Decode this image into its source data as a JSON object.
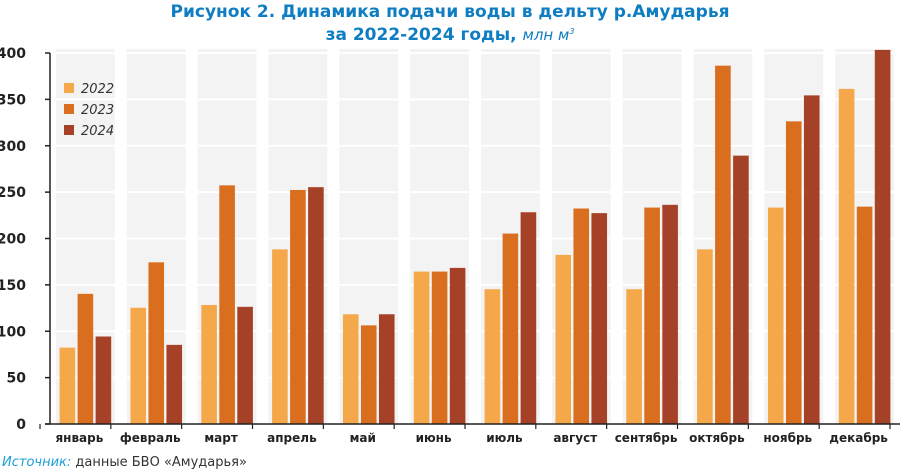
{
  "chart_data": {
    "type": "bar",
    "title_line1": "Рисунок 2. Динамика подачи воды в дельту р.Амударья",
    "title_line2": "за 2022-2024 годы",
    "title_unit": "млн м",
    "title_unit_sup": "3",
    "categories": [
      "январь",
      "февраль",
      "март",
      "апрель",
      "май",
      "июнь",
      "июль",
      "август",
      "сентябрь",
      "октябрь",
      "ноябрь",
      "декабрь"
    ],
    "series": [
      {
        "name": "2022",
        "color": "#f5a84a",
        "values": [
          82,
          125,
          128,
          188,
          118,
          164,
          145,
          182,
          145,
          188,
          233,
          361
        ]
      },
      {
        "name": "2023",
        "color": "#d86e1e",
        "values": [
          140,
          174,
          257,
          252,
          106,
          164,
          205,
          232,
          233,
          386,
          326,
          234
        ]
      },
      {
        "name": "2024",
        "color": "#a54126",
        "values": [
          94,
          85,
          126,
          255,
          118,
          168,
          228,
          227,
          236,
          289,
          354,
          403
        ]
      }
    ],
    "yticks": [
      0,
      50,
      100,
      150,
      200,
      250,
      300,
      350,
      400
    ],
    "ylim": [
      0,
      400
    ],
    "xlabel": "",
    "ylabel": "",
    "grid": true,
    "legend_position": "top-left",
    "panel_color": "#f3f3f3"
  },
  "source": {
    "label": "Источник:",
    "text": " данные БВО «Амударья»"
  }
}
